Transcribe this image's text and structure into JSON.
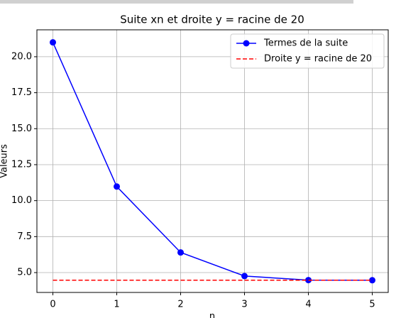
{
  "chart_data": {
    "type": "line",
    "title": "Suite xn et droite y = racine de 20",
    "xlabel": "n",
    "ylabel": "Valeurs",
    "x": [
      0,
      1,
      2,
      3,
      4,
      5
    ],
    "series": [
      {
        "name": "Termes de la suite",
        "color": "#0000ff",
        "marker": "o",
        "linestyle": "solid",
        "values": [
          21,
          10.98,
          6.4,
          4.76,
          4.48,
          4.47
        ]
      },
      {
        "name": "Droite y = racine de 20",
        "color": "#ff0000",
        "marker": "none",
        "linestyle": "dashed",
        "values": [
          4.47,
          4.47,
          4.47,
          4.47,
          4.47,
          4.47
        ]
      }
    ],
    "xlim": [
      -0.25,
      5.25
    ],
    "xticks": [
      0,
      1,
      2,
      3,
      4,
      5
    ],
    "ylim": [
      3.62,
      21.87
    ],
    "yticks": [
      {
        "value": 5,
        "label": "5.0"
      },
      {
        "value": 7.5,
        "label": "7.5"
      },
      {
        "value": 10,
        "label": "10.0"
      },
      {
        "value": 12.5,
        "label": "12.5"
      },
      {
        "value": 15,
        "label": "15.0"
      },
      {
        "value": 17.5,
        "label": "17.5"
      },
      {
        "value": 20,
        "label": "20.0"
      }
    ],
    "grid": true,
    "legend": "upper right"
  }
}
